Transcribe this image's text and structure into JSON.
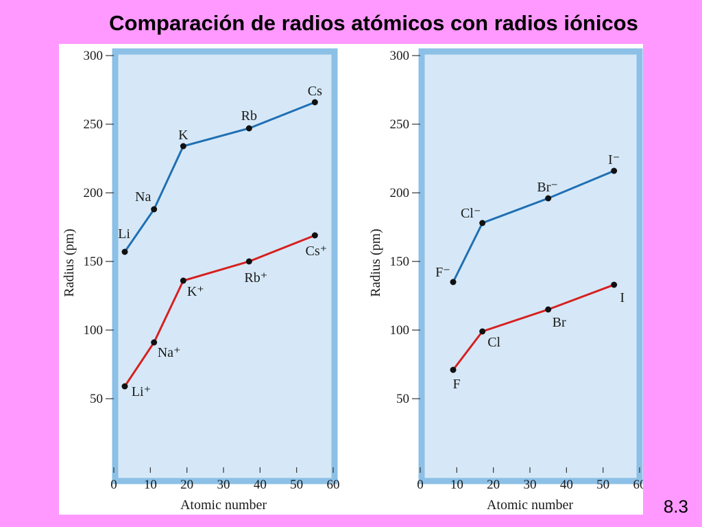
{
  "slide": {
    "title": "Comparación de radios atómicos con radios iónicos",
    "number": "8.3"
  },
  "colors": {
    "background": "#ff99ff",
    "plot_fill": "#d6e8f7",
    "frame": "#8cc0e6",
    "atom_series": "#1f6fb4",
    "ion_series": "#d62020"
  },
  "chart_data": [
    {
      "type": "line",
      "title": "",
      "xlabel": "Atomic number",
      "ylabel": "Radius (pm)",
      "xlim": [
        0,
        60
      ],
      "ylim": [
        0,
        300
      ],
      "x_ticks": [
        0,
        10,
        20,
        30,
        40,
        50,
        60
      ],
      "y_ticks": [
        50,
        100,
        150,
        200,
        250,
        300
      ],
      "series": [
        {
          "color": "#1f6fb4",
          "points": [
            {
              "x": 3,
              "y": 157,
              "label": "Li"
            },
            {
              "x": 11,
              "y": 188,
              "label": "Na"
            },
            {
              "x": 19,
              "y": 234,
              "label": "K"
            },
            {
              "x": 37,
              "y": 247,
              "label": "Rb"
            },
            {
              "x": 55,
              "y": 266,
              "label": "Cs"
            }
          ]
        },
        {
          "color": "#d62020",
          "points": [
            {
              "x": 3,
              "y": 59,
              "label": "Li⁺"
            },
            {
              "x": 11,
              "y": 91,
              "label": "Na⁺"
            },
            {
              "x": 19,
              "y": 136,
              "label": "K⁺"
            },
            {
              "x": 37,
              "y": 150,
              "label": "Rb⁺"
            },
            {
              "x": 55,
              "y": 169,
              "label": "Cs⁺"
            }
          ]
        }
      ]
    },
    {
      "type": "line",
      "title": "",
      "xlabel": "Atomic number",
      "ylabel": "Radius (pm)",
      "xlim": [
        0,
        60
      ],
      "ylim": [
        0,
        300
      ],
      "x_ticks": [
        0,
        10,
        20,
        30,
        40,
        50,
        60
      ],
      "y_ticks": [
        50,
        100,
        150,
        200,
        250,
        300
      ],
      "series": [
        {
          "color": "#1f6fb4",
          "points": [
            {
              "x": 9,
              "y": 135,
              "label": "F⁻"
            },
            {
              "x": 17,
              "y": 178,
              "label": "Cl⁻"
            },
            {
              "x": 35,
              "y": 196,
              "label": "Br⁻"
            },
            {
              "x": 53,
              "y": 216,
              "label": "I⁻"
            }
          ]
        },
        {
          "color": "#d62020",
          "points": [
            {
              "x": 9,
              "y": 71,
              "label": "F"
            },
            {
              "x": 17,
              "y": 99,
              "label": "Cl"
            },
            {
              "x": 35,
              "y": 115,
              "label": "Br"
            },
            {
              "x": 53,
              "y": 133,
              "label": "I"
            }
          ]
        }
      ]
    }
  ]
}
